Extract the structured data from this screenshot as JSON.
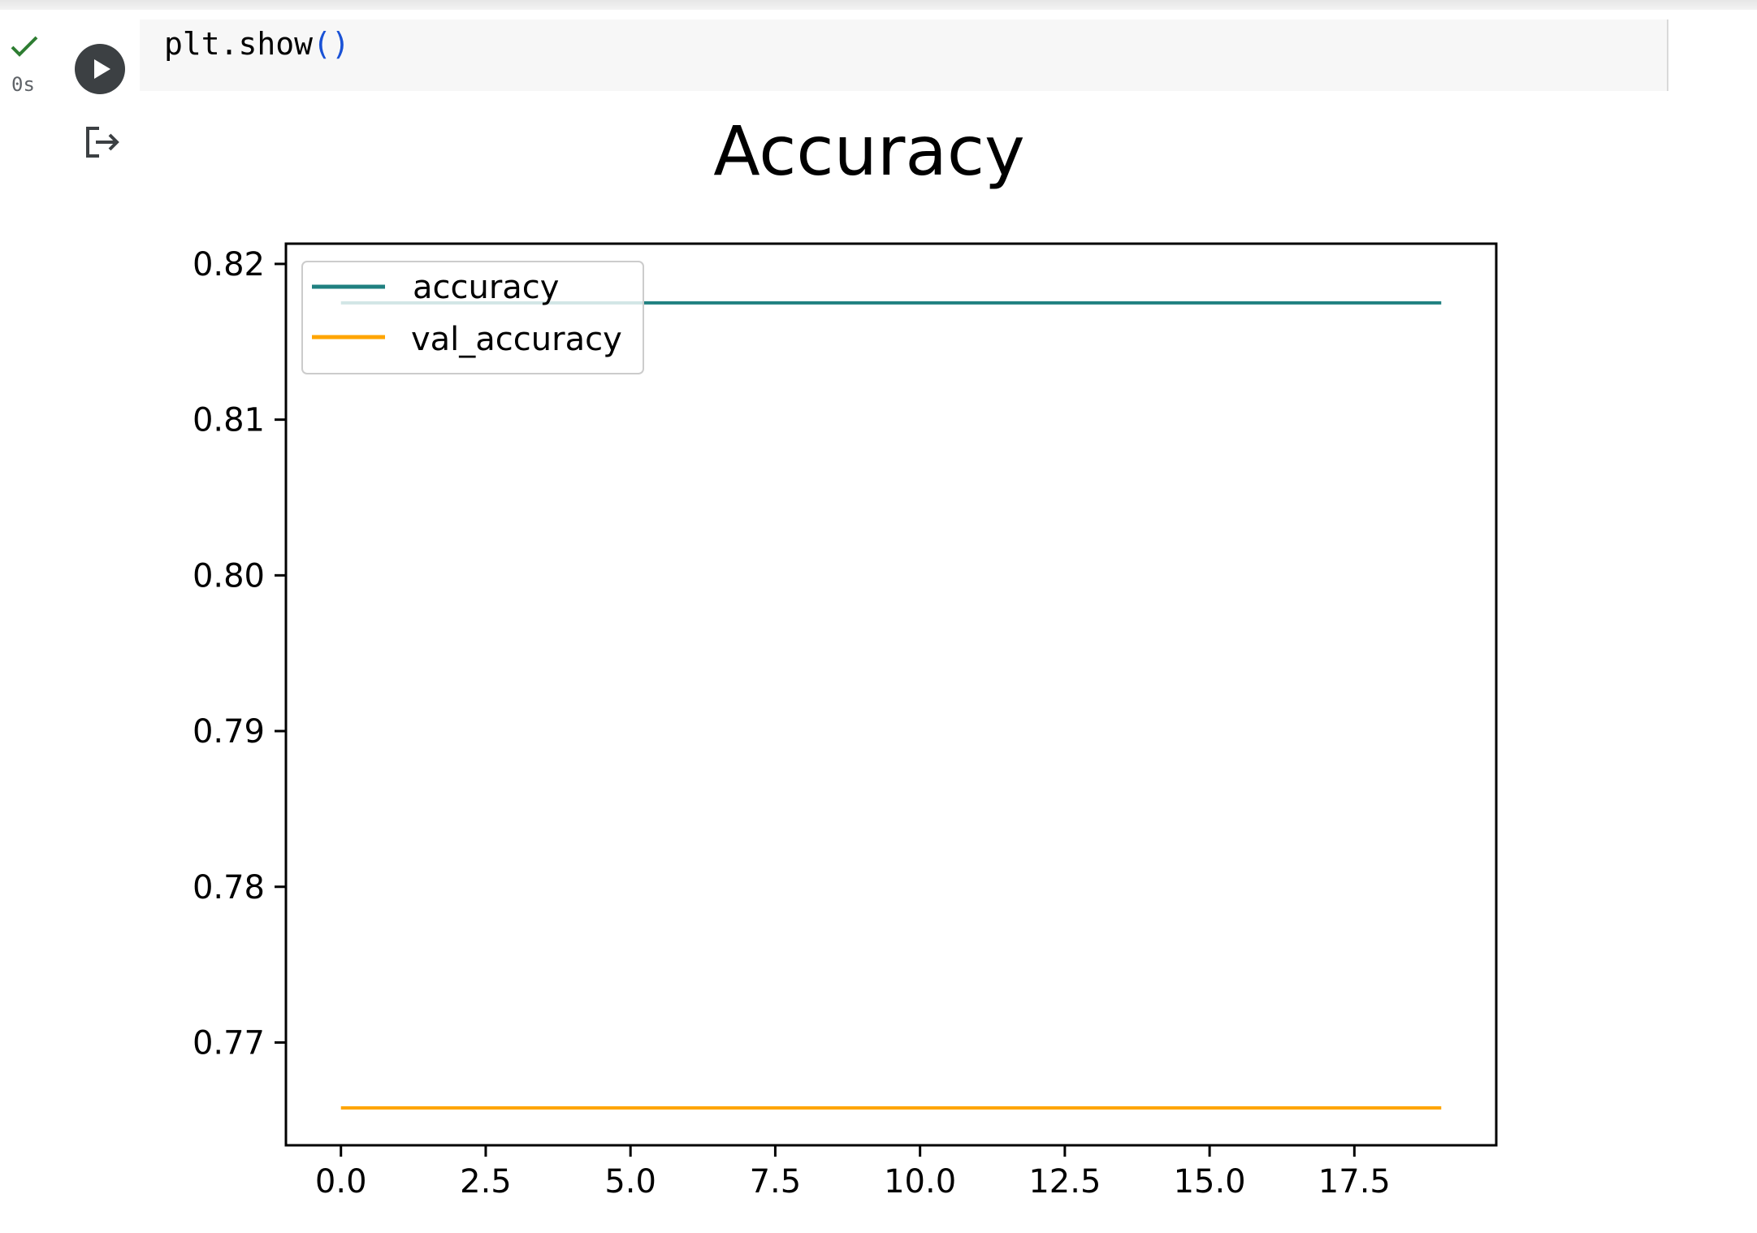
{
  "cell": {
    "execution_time": "0s",
    "code": {
      "text": "plt.show",
      "parens": "()"
    },
    "status": "success",
    "status_icon": "checkmark-icon",
    "run_icon": "play-icon",
    "output_icon": "output-redirect-icon"
  },
  "colors": {
    "accuracy": "#1f8080",
    "val_accuracy": "#ffa500",
    "success": "#2e7d32"
  },
  "chart_data": {
    "type": "line",
    "title": "Accuracy",
    "xlabel": "",
    "ylabel": "",
    "xlim": [
      -0.95,
      19.95
    ],
    "ylim": [
      0.7634,
      0.8213
    ],
    "x_ticks": [
      0.0,
      2.5,
      5.0,
      7.5,
      10.0,
      12.5,
      15.0,
      17.5
    ],
    "x_tick_labels": [
      "0.0",
      "2.5",
      "5.0",
      "7.5",
      "10.0",
      "12.5",
      "15.0",
      "17.5"
    ],
    "y_ticks": [
      0.77,
      0.78,
      0.79,
      0.8,
      0.81,
      0.82
    ],
    "y_tick_labels": [
      "0.77",
      "0.78",
      "0.79",
      "0.80",
      "0.81",
      "0.82"
    ],
    "legend_position": "top-left",
    "grid": false,
    "series": [
      {
        "name": "accuracy",
        "color": "#1f8080",
        "x": [
          0,
          19
        ],
        "y": [
          0.8175,
          0.8175
        ]
      },
      {
        "name": "val_accuracy",
        "color": "#ffa500",
        "x": [
          0,
          19
        ],
        "y": [
          0.7658,
          0.7658
        ]
      }
    ]
  }
}
